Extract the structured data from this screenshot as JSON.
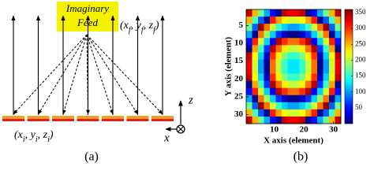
{
  "figure_a": {
    "feed_box": [
      "Imaginary",
      "Feed"
    ],
    "feed_coord": [
      "(x",
      "f",
      ", y",
      "f",
      ", z",
      "f",
      ")"
    ],
    "element_coord": [
      "(x",
      "i",
      ", y",
      "i",
      ", z",
      "i",
      ")"
    ],
    "axis_z": "z",
    "axis_x": "x",
    "caption": "(a)"
  },
  "chart_data": {
    "type": "heatmap",
    "xlabel": "X axis (element)",
    "ylabel": "Y axis (element)",
    "x": [
      1.5,
      3.5,
      5.5,
      7.5,
      9.5,
      11.5,
      13.5,
      15.5,
      17.5,
      19.5,
      21.5,
      23.5,
      25.5,
      27.5,
      29.5,
      31.5
    ],
    "y": [
      1.5,
      3.5,
      5.5,
      7.5,
      9.5,
      11.5,
      13.5,
      15.5,
      17.5,
      19.5,
      21.5,
      23.5,
      25.5,
      27.5,
      29.5,
      31.5
    ],
    "z": [
      [
        336,
        251,
        174,
        106,
        50,
        6,
        336,
        321,
        321,
        336,
        6,
        50,
        106,
        174,
        251,
        336
      ],
      [
        251,
        161,
        78,
        6,
        305,
        257,
        224,
        208,
        208,
        224,
        257,
        305,
        6,
        78,
        161,
        251
      ],
      [
        174,
        78,
        351,
        274,
        208,
        156,
        120,
        101,
        101,
        120,
        156,
        208,
        274,
        351,
        78,
        174
      ],
      [
        106,
        6,
        274,
        191,
        120,
        63,
        23,
        3,
        3,
        23,
        63,
        120,
        191,
        274,
        6,
        106
      ],
      [
        50,
        305,
        208,
        120,
        43,
        342,
        299,
        276,
        276,
        299,
        342,
        43,
        120,
        208,
        305,
        50
      ],
      [
        6,
        257,
        156,
        63,
        342,
        276,
        230,
        205,
        205,
        230,
        276,
        342,
        63,
        156,
        257,
        6
      ],
      [
        336,
        224,
        120,
        23,
        299,
        230,
        180,
        154,
        154,
        180,
        230,
        299,
        23,
        120,
        224,
        336
      ],
      [
        321,
        208,
        101,
        3,
        276,
        205,
        154,
        127,
        127,
        154,
        205,
        276,
        3,
        101,
        208,
        321
      ],
      [
        321,
        208,
        101,
        3,
        276,
        205,
        154,
        127,
        127,
        154,
        205,
        276,
        3,
        101,
        208,
        321
      ],
      [
        336,
        224,
        120,
        23,
        299,
        230,
        180,
        154,
        154,
        180,
        230,
        299,
        23,
        120,
        224,
        336
      ],
      [
        6,
        257,
        156,
        63,
        342,
        276,
        230,
        205,
        205,
        230,
        276,
        342,
        63,
        156,
        257,
        6
      ],
      [
        50,
        305,
        208,
        120,
        43,
        342,
        299,
        276,
        276,
        299,
        342,
        43,
        120,
        208,
        305,
        50
      ],
      [
        106,
        6,
        274,
        191,
        120,
        63,
        23,
        3,
        3,
        23,
        63,
        120,
        191,
        274,
        6,
        106
      ],
      [
        174,
        78,
        351,
        274,
        208,
        156,
        120,
        101,
        101,
        120,
        156,
        208,
        274,
        351,
        78,
        174
      ],
      [
        251,
        161,
        78,
        6,
        305,
        257,
        224,
        208,
        208,
        224,
        257,
        305,
        6,
        78,
        161,
        251
      ],
      [
        336,
        251,
        174,
        106,
        50,
        6,
        336,
        321,
        321,
        336,
        6,
        50,
        106,
        174,
        251,
        336
      ]
    ],
    "xlim": [
      0.5,
      32.5
    ],
    "ylim": [
      0.5,
      32.5
    ],
    "y_reversed": true,
    "xticks": [
      10,
      20,
      30
    ],
    "yticks": [
      5,
      10,
      15,
      20,
      25,
      30
    ],
    "colormap": "jet",
    "zlim": [
      0,
      360
    ],
    "colorbar_ticks": [
      50,
      100,
      150,
      200,
      250,
      300,
      350
    ]
  },
  "caption_b": "(b)"
}
